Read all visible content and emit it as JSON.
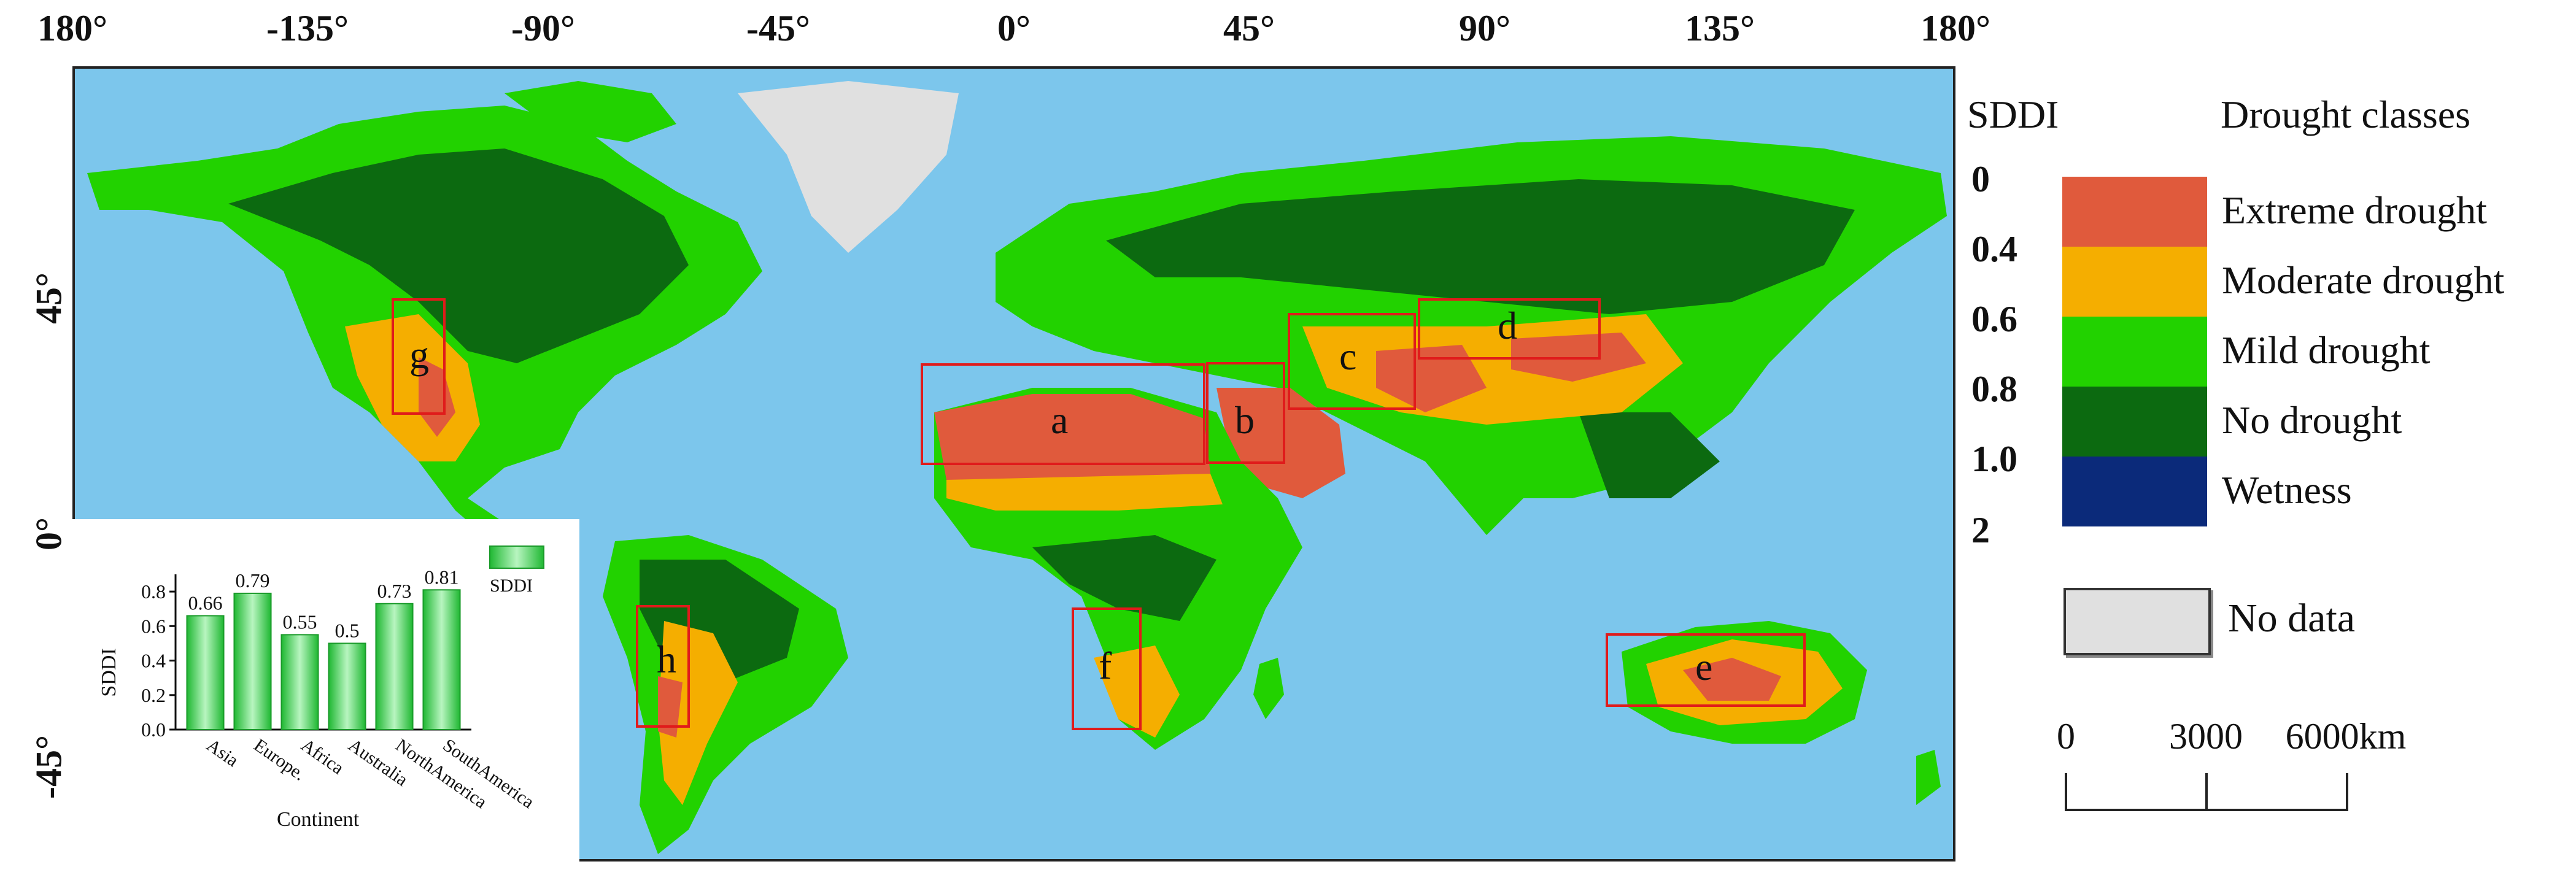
{
  "map": {
    "lon_labels": [
      "180°",
      "-135°",
      "-90°",
      "-45°",
      "0°",
      "45°",
      "90°",
      "135°",
      "180°"
    ],
    "lat_labels": [
      "45°",
      "0°",
      "-45°"
    ],
    "regions": [
      "a",
      "b",
      "c",
      "d",
      "e",
      "f",
      "g",
      "h"
    ],
    "colors": {
      "ocean": "#7cc6ec",
      "extreme": "#e05a3c",
      "moderate": "#f5ae00",
      "mild": "#22d200",
      "none": "#0c6a10",
      "wetness": "#0b2a7a",
      "nodata": "#e0e0e0",
      "box": "#e01b1b"
    }
  },
  "legend": {
    "sddi_title": "SDDI",
    "classes_title": "Drought classes",
    "ticks": [
      "0",
      "0.4",
      "0.6",
      "0.8",
      "1.0",
      "2"
    ],
    "classes": [
      {
        "label": "Extreme drought",
        "color": "#e05a3c"
      },
      {
        "label": "Moderate drought",
        "color": "#f5ae00"
      },
      {
        "label": "Mild drought",
        "color": "#22d200"
      },
      {
        "label": "No drought",
        "color": "#0c6a10"
      },
      {
        "label": "Wetness",
        "color": "#0b2a7a"
      }
    ],
    "nodata_label": "No data"
  },
  "scale_bar": {
    "labels": [
      "0",
      "3000",
      "6000km"
    ]
  },
  "chart_data": {
    "type": "bar",
    "categories": [
      "Asia",
      "Europe.",
      "Africa",
      "Australia",
      "NorthAmerica",
      "SouthAmerica"
    ],
    "values": [
      0.66,
      0.79,
      0.55,
      0.5,
      0.73,
      0.81
    ],
    "value_labels": [
      "0.66",
      "0.79",
      "0.55",
      "0.5",
      "0.73",
      "0.81"
    ],
    "xlabel": "Continent",
    "ylabel": "SDDI",
    "ylim": [
      0,
      0.9
    ],
    "yticks": [
      "0.0",
      "0.2",
      "0.4",
      "0.6",
      "0.8"
    ],
    "legend": "SDDI",
    "legend_position": "top-right",
    "color": "#22c83c"
  }
}
